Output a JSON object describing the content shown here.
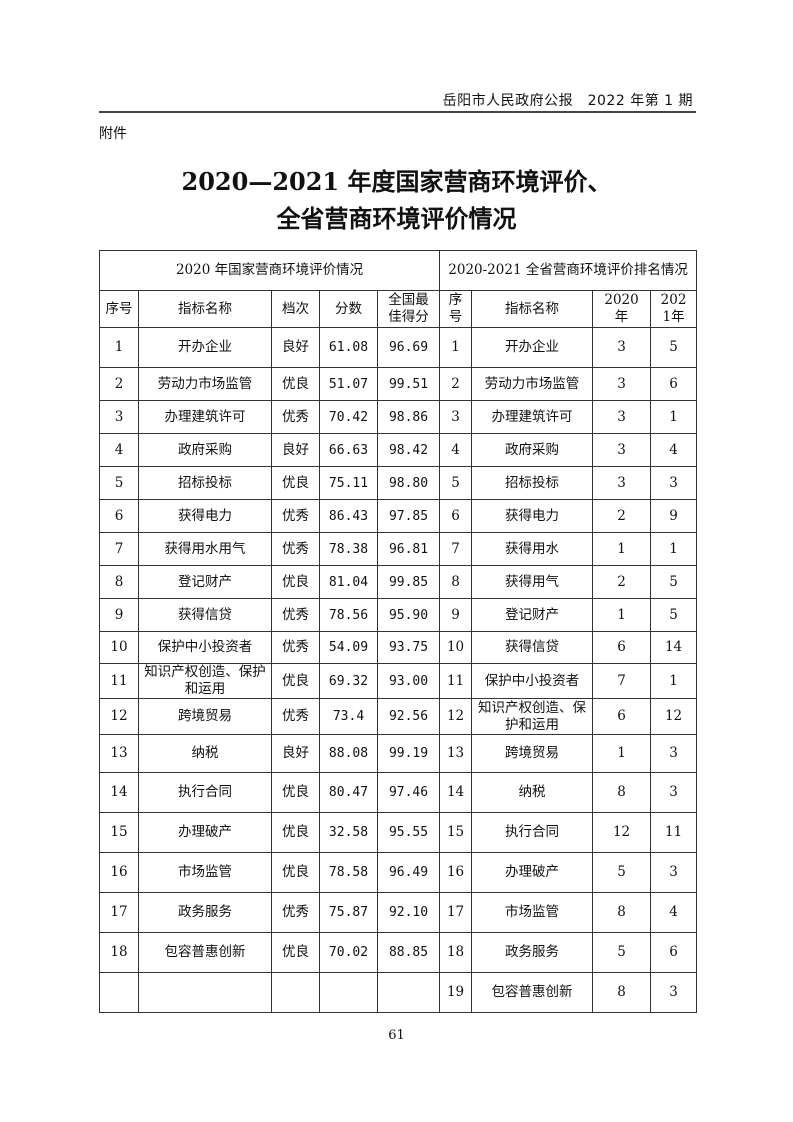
{
  "header": {
    "publication": "岳阳市人民政府公报　2022 年第 1 期"
  },
  "annex_label": "附件",
  "title": {
    "line1": "2020—2021 年度国家营商环境评价、",
    "line2": "全省营商环境评价情况"
  },
  "table": {
    "section_left": "2020 年国家营商环境评价情况",
    "section_right": "2020-2021 全省营商环境评价排名情况",
    "columns_left": [
      "序号",
      "指标名称",
      "档次",
      "分数",
      "全国最佳得分"
    ],
    "columns_right": [
      "序号",
      "指标名称",
      "2020年",
      "2021年"
    ],
    "rows_left": [
      [
        "1",
        "开办企业",
        "良好",
        "61.08",
        "96.69"
      ],
      [
        "2",
        "劳动力市场监管",
        "优良",
        "51.07",
        "99.51"
      ],
      [
        "3",
        "办理建筑许可",
        "优秀",
        "70.42",
        "98.86"
      ],
      [
        "4",
        "政府采购",
        "良好",
        "66.63",
        "98.42"
      ],
      [
        "5",
        "招标投标",
        "优良",
        "75.11",
        "98.80"
      ],
      [
        "6",
        "获得电力",
        "优秀",
        "86.43",
        "97.85"
      ],
      [
        "7",
        "获得用水用气",
        "优秀",
        "78.38",
        "96.81"
      ],
      [
        "8",
        "登记财产",
        "优良",
        "81.04",
        "99.85"
      ],
      [
        "9",
        "获得信贷",
        "优秀",
        "78.56",
        "95.90"
      ],
      [
        "10",
        "保护中小投资者",
        "优秀",
        "54.09",
        "93.75"
      ],
      [
        "11",
        "知识产权创造、保护和运用",
        "优良",
        "69.32",
        "93.00"
      ],
      [
        "12",
        "跨境贸易",
        "优秀",
        "73.4",
        "92.56"
      ],
      [
        "13",
        "纳税",
        "良好",
        "88.08",
        "99.19"
      ],
      [
        "14",
        "执行合同",
        "优良",
        "80.47",
        "97.46"
      ],
      [
        "15",
        "办理破产",
        "优良",
        "32.58",
        "95.55"
      ],
      [
        "16",
        "市场监管",
        "优良",
        "78.58",
        "96.49"
      ],
      [
        "17",
        "政务服务",
        "优秀",
        "75.87",
        "92.10"
      ],
      [
        "18",
        "包容普惠创新",
        "优良",
        "70.02",
        "88.85"
      ],
      [
        "",
        "",
        "",
        "",
        ""
      ]
    ],
    "rows_right": [
      [
        "1",
        "开办企业",
        "3",
        "5"
      ],
      [
        "2",
        "劳动力市场监管",
        "3",
        "6"
      ],
      [
        "3",
        "办理建筑许可",
        "3",
        "1"
      ],
      [
        "4",
        "政府采购",
        "3",
        "4"
      ],
      [
        "5",
        "招标投标",
        "3",
        "3"
      ],
      [
        "6",
        "获得电力",
        "2",
        "9"
      ],
      [
        "7",
        "获得用水",
        "1",
        "1"
      ],
      [
        "8",
        "获得用气",
        "2",
        "5"
      ],
      [
        "9",
        "登记财产",
        "1",
        "5"
      ],
      [
        "10",
        "获得信贷",
        "6",
        "14"
      ],
      [
        "11",
        "保护中小投资者",
        "7",
        "1"
      ],
      [
        "12",
        "知识产权创造、保护和运用",
        "6",
        "12"
      ],
      [
        "13",
        "跨境贸易",
        "1",
        "3"
      ],
      [
        "14",
        "纳税",
        "8",
        "3"
      ],
      [
        "15",
        "执行合同",
        "12",
        "11"
      ],
      [
        "16",
        "办理破产",
        "5",
        "3"
      ],
      [
        "17",
        "市场监管",
        "8",
        "4"
      ],
      [
        "18",
        "政务服务",
        "5",
        "6"
      ],
      [
        "19",
        "包容普惠创新",
        "8",
        "3"
      ]
    ]
  },
  "page_number": "61"
}
